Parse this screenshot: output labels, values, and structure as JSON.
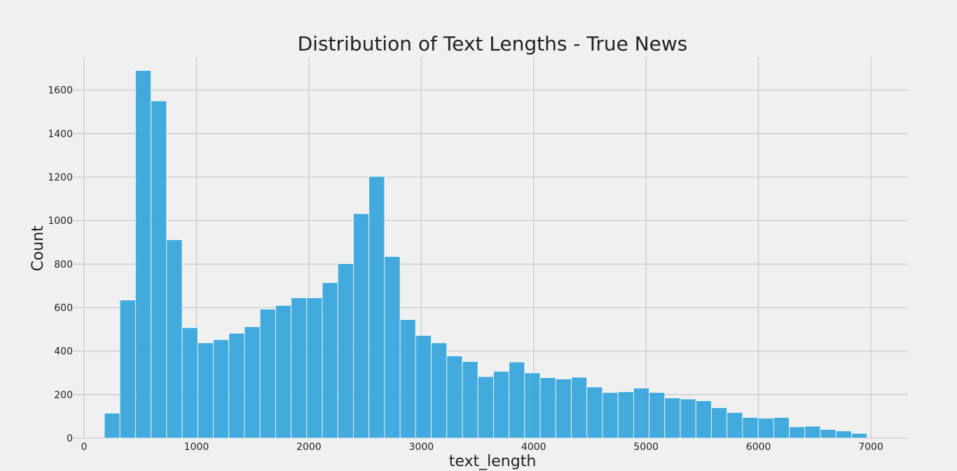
{
  "chart_data": {
    "type": "bar",
    "title": "Distribution of Text Lengths - True News",
    "xlabel": "text_length",
    "ylabel": "Count",
    "xlim": [
      -100,
      7330
    ],
    "ylim": [
      0,
      1750
    ],
    "xticks": [
      0,
      1000,
      2000,
      3000,
      4000,
      5000,
      6000,
      7000
    ],
    "yticks": [
      0,
      200,
      400,
      600,
      800,
      1000,
      1200,
      1400,
      1600
    ],
    "grid": true,
    "color": "#30a2da",
    "bin_width": 138.5,
    "bin_start": 180,
    "values": [
      115,
      635,
      1690,
      1550,
      912,
      508,
      438,
      453,
      482,
      512,
      593,
      610,
      645,
      645,
      715,
      802,
      1032,
      1203,
      835,
      545,
      472,
      438,
      378,
      352,
      283,
      307,
      350,
      300,
      278,
      272,
      280,
      235,
      210,
      213,
      230,
      210,
      185,
      180,
      172,
      140,
      118,
      95,
      92,
      95,
      52,
      55,
      40,
      33,
      22
    ]
  }
}
